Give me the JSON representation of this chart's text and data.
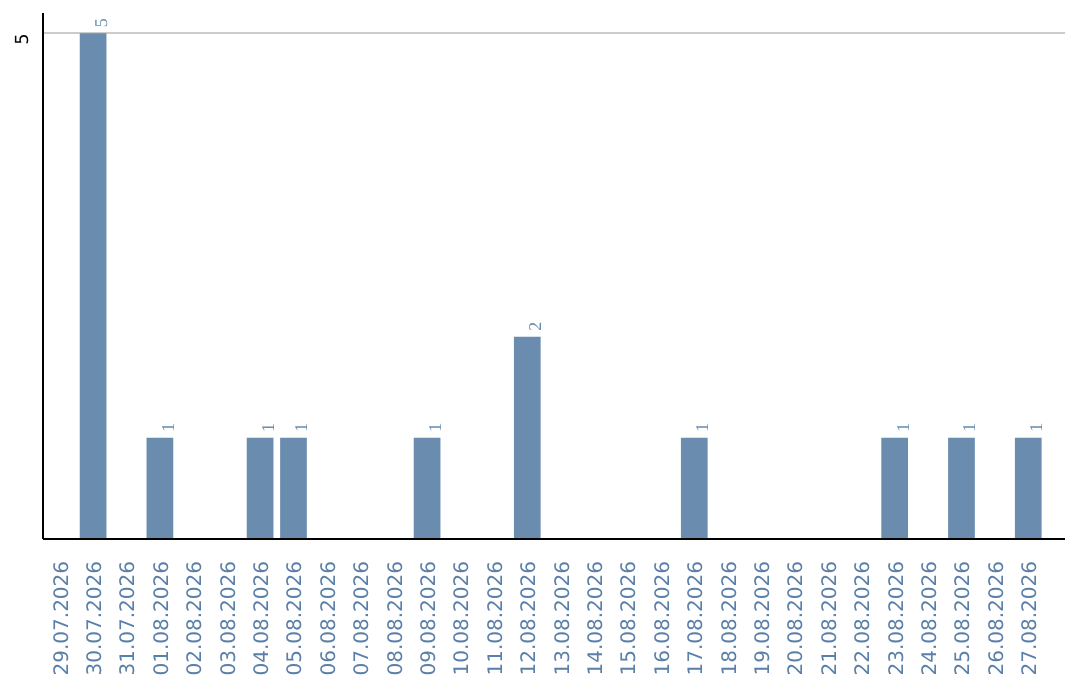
{
  "chart_data": {
    "type": "bar",
    "categories": [
      "29.07.2026",
      "30.07.2026",
      "31.07.2026",
      "01.08.2026",
      "02.08.2026",
      "03.08.2026",
      "04.08.2026",
      "05.08.2026",
      "06.08.2026",
      "07.08.2026",
      "08.08.2026",
      "09.08.2026",
      "10.08.2026",
      "11.08.2026",
      "12.08.2026",
      "13.08.2026",
      "14.08.2026",
      "15.08.2026",
      "16.08.2026",
      "17.08.2026",
      "18.08.2026",
      "19.08.2026",
      "20.08.2026",
      "21.08.2026",
      "22.08.2026",
      "23.08.2026",
      "24.08.2026",
      "25.08.2026",
      "26.08.2026",
      "27.08.2026"
    ],
    "values": [
      0,
      5,
      0,
      1,
      0,
      0,
      1,
      1,
      0,
      0,
      0,
      1,
      0,
      0,
      2,
      0,
      0,
      0,
      0,
      1,
      0,
      0,
      0,
      0,
      0,
      1,
      0,
      1,
      0,
      1
    ],
    "value_labels": [
      null,
      "5",
      null,
      "1",
      null,
      null,
      "1",
      "1",
      null,
      null,
      null,
      "1",
      null,
      null,
      "2",
      null,
      null,
      null,
      null,
      "1",
      null,
      null,
      null,
      null,
      null,
      "1",
      null,
      "1",
      null,
      "1"
    ],
    "color": "#6a8caf",
    "ylim": [
      0,
      5.2
    ],
    "yticks": [
      {
        "value": 0,
        "label": null
      },
      5
    ],
    "grid": "y"
  }
}
